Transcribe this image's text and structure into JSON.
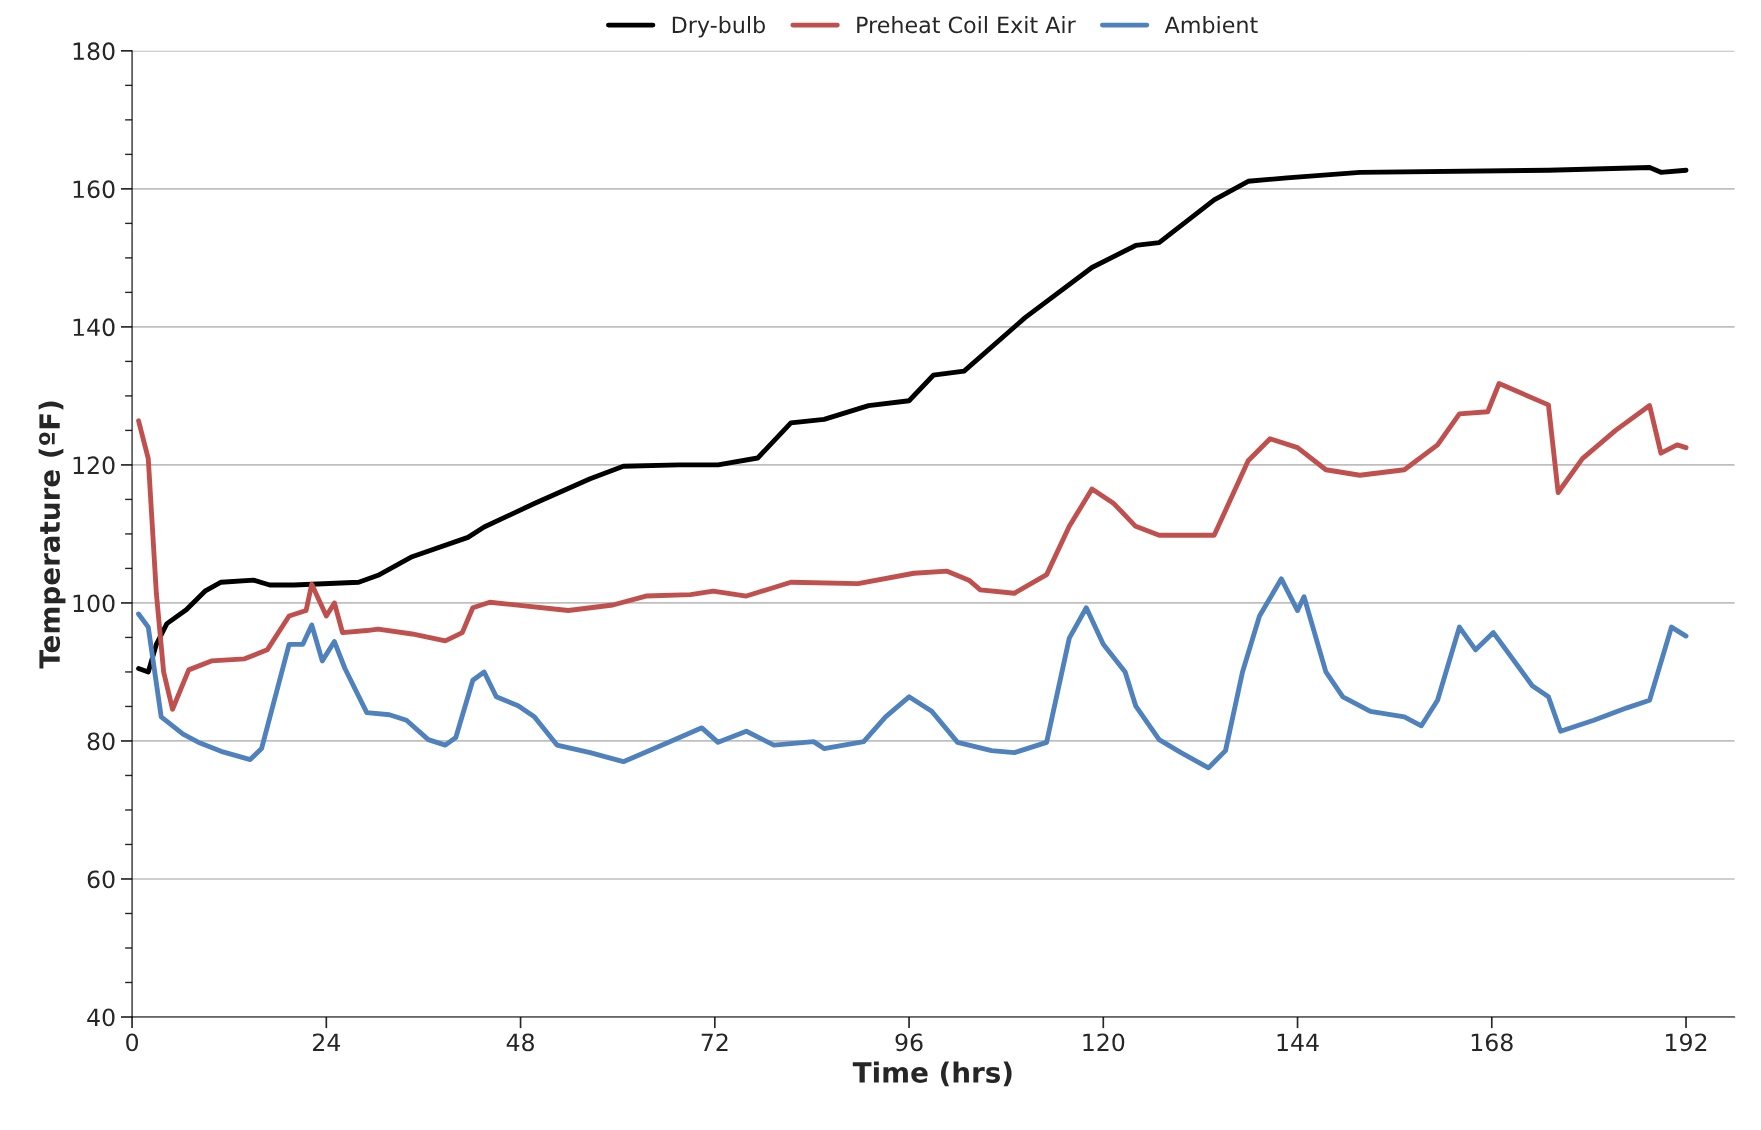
{
  "chart_data": {
    "type": "line",
    "xlabel": "Time (hrs)",
    "ylabel": "Temperature (ºF)",
    "xlim": [
      0,
      198
    ],
    "xticks": [
      0,
      24,
      48,
      72,
      96,
      120,
      144,
      168,
      192
    ],
    "ylim": [
      40,
      180
    ],
    "yticks": [
      40,
      60,
      80,
      100,
      120,
      140,
      160,
      180
    ],
    "grid": "y",
    "legend": "top",
    "line_style": "solid",
    "marker": "none",
    "series": [
      {
        "name": "Dry-bulb",
        "color": "#000000",
        "x": [
          0.8,
          2,
          3,
          4.3,
          6.7,
          9,
          11,
          15,
          17,
          20,
          28,
          30.4,
          34.6,
          41.5,
          43.5,
          49.7,
          56.6,
          60.7,
          67.6,
          72.4,
          77.3,
          81.4,
          85.5,
          91,
          96,
          99,
          102.8,
          110.3,
          118.6,
          124,
          126.9,
          133.7,
          137.9,
          142.7,
          151.7,
          175,
          187.5,
          188.9,
          192
        ],
        "values": [
          90.5,
          90,
          94,
          97,
          99,
          101.7,
          103,
          103.3,
          102.6,
          102.6,
          103,
          104,
          106.7,
          109.5,
          111,
          114.4,
          118,
          119.8,
          120,
          120,
          121,
          126.1,
          126.6,
          128.6,
          129.3,
          133,
          133.6,
          141.3,
          148.6,
          151.8,
          152.2,
          158.4,
          161.1,
          161.6,
          162.4,
          162.7,
          163.1,
          162.4,
          162.7
        ]
      },
      {
        "name": "Preheat Coil Exit Air",
        "color": "#c0504d",
        "x": [
          0.8,
          2,
          3,
          3.9,
          5,
          7,
          9.8,
          13.9,
          16.7,
          19.4,
          21.5,
          22.2,
          24,
          25,
          26,
          29,
          30.4,
          34.6,
          38.7,
          40.8,
          42.1,
          44.2,
          53.9,
          59.4,
          63.5,
          69,
          71.8,
          75.9,
          81.4,
          89.7,
          96.6,
          100.7,
          103.4,
          104.8,
          109,
          113,
          115.8,
          118.6,
          121.3,
          124,
          126.9,
          131,
          133.7,
          137.9,
          140.6,
          144,
          147.5,
          151.7,
          157.2,
          161.3,
          164,
          167.5,
          168.9,
          175,
          176.2,
          179.2,
          183.3,
          187.5,
          188.9,
          190.9,
          192
        ],
        "values": [
          126.4,
          120.9,
          101.4,
          90,
          84.6,
          90.3,
          91.6,
          91.9,
          93.2,
          98.1,
          98.9,
          102.7,
          98.1,
          100,
          95.7,
          96,
          96.2,
          95.5,
          94.5,
          95.7,
          99.3,
          100.1,
          98.9,
          99.7,
          101,
          101.2,
          101.7,
          101,
          103,
          102.8,
          104.3,
          104.6,
          103.3,
          101.9,
          101.4,
          104.1,
          111.1,
          116.5,
          114.4,
          111.1,
          109.8,
          109.8,
          109.8,
          120.6,
          123.8,
          122.5,
          119.3,
          118.5,
          119.3,
          122.9,
          127.4,
          127.7,
          131.8,
          128.7,
          116,
          120.9,
          125,
          128.6,
          121.7,
          122.9,
          122.5
        ]
      },
      {
        "name": "Ambient",
        "color": "#4f81bd",
        "x": [
          0.8,
          2,
          3.6,
          6.3,
          8.4,
          11,
          14.6,
          16,
          19.4,
          21.1,
          22.2,
          23.5,
          25,
          26.3,
          29,
          31.8,
          33.9,
          36.6,
          38.7,
          40,
          42.1,
          43.5,
          45,
          47.7,
          49.7,
          52.5,
          56.6,
          60.7,
          66.3,
          70.4,
          72.4,
          75.9,
          79.3,
          84.2,
          85.5,
          90.4,
          93.1,
          96,
          98.8,
          102,
          106.2,
          109,
          113,
          115.8,
          117.9,
          120,
          122.7,
          124,
          126.9,
          129.6,
          133,
          135.1,
          137.2,
          139.3,
          142,
          144,
          144.8,
          147.5,
          149.6,
          153,
          157.2,
          159.3,
          161.3,
          164,
          166,
          168.2,
          173,
          175,
          176.5,
          180.6,
          184.7,
          187.5,
          190.2,
          192
        ],
        "values": [
          98.4,
          96.5,
          83.5,
          81,
          79.7,
          78.5,
          77.3,
          78.9,
          94,
          94,
          96.8,
          91.6,
          94.4,
          90.5,
          84.1,
          83.8,
          83,
          80.2,
          79.4,
          80.5,
          88.8,
          90,
          86.4,
          85.1,
          83.5,
          79.4,
          78.3,
          77,
          79.8,
          81.9,
          79.8,
          81.4,
          79.4,
          79.9,
          78.9,
          79.9,
          83.5,
          86.4,
          84.3,
          79.8,
          78.6,
          78.3,
          79.8,
          94.9,
          99.3,
          94,
          90,
          85.1,
          80.2,
          78.3,
          76.1,
          78.6,
          90,
          98.1,
          103.5,
          98.9,
          100.9,
          90,
          86.4,
          84.3,
          83.5,
          82.2,
          85.9,
          96.5,
          93.2,
          95.7,
          88,
          86.4,
          81.4,
          83,
          84.8,
          85.9,
          96.5,
          95.2
        ]
      }
    ]
  }
}
